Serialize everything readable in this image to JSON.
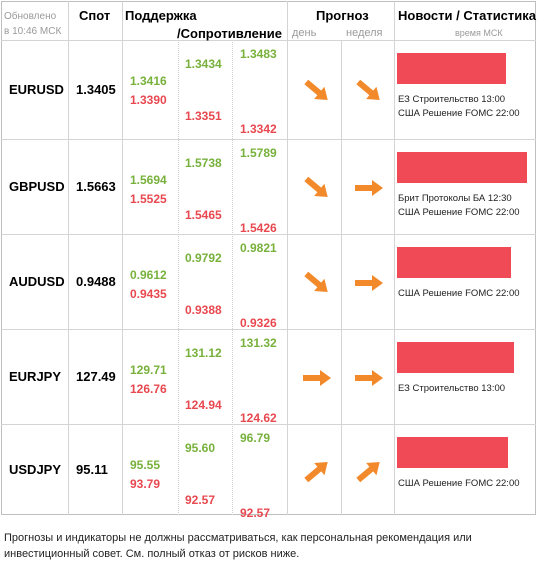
{
  "header": {
    "updated_line1": "Обновлено",
    "updated_line2": "в 10:46 МСК",
    "spot": "Спот",
    "support": "Поддержка",
    "resistance": "/Сопротивление",
    "forecast": "Прогноз",
    "day": "день",
    "week": "неделя",
    "news": "Новости / Статистика",
    "time_note": "время МСК"
  },
  "rows": [
    {
      "pair": "EURUSD",
      "spot": "1.3405",
      "c1": [
        "1.3416",
        "1.3390"
      ],
      "c2": [
        "1.3434",
        "1.3351"
      ],
      "c3": [
        "1.3483",
        "1.3342"
      ],
      "day": "down-right",
      "week": "down-right",
      "bar_pct": 0.81,
      "news": [
        "ЕЗ Строительство 13:00",
        "США Решение FOMC 22:00"
      ]
    },
    {
      "pair": "GBPUSD",
      "spot": "1.5663",
      "c1": [
        "1.5694",
        "1.5525"
      ],
      "c2": [
        "1.5738",
        "1.5465"
      ],
      "c3": [
        "1.5789",
        "1.5426"
      ],
      "day": "down-right",
      "week": "right",
      "bar_pct": 0.97,
      "news": [
        "Брит Протоколы БА 12:30",
        "США Решение FOMC 22:00"
      ]
    },
    {
      "pair": "AUDUSD",
      "spot": "0.9488",
      "c1": [
        "0.9612",
        "0.9435"
      ],
      "c2": [
        "0.9792",
        "0.9388"
      ],
      "c3": [
        "0.9821",
        "0.9326"
      ],
      "day": "down-right",
      "week": "right",
      "bar_pct": 0.85,
      "news": [
        "США Решение FOMC 22:00"
      ]
    },
    {
      "pair": "EURJPY",
      "spot": "127.49",
      "c1": [
        "129.71",
        "126.76"
      ],
      "c2": [
        "131.12",
        "124.94"
      ],
      "c3": [
        "131.32",
        "124.62"
      ],
      "day": "right",
      "week": "right",
      "bar_pct": 0.87,
      "news": [
        "ЕЗ Строительство 13:00"
      ]
    },
    {
      "pair": "USDJPY",
      "spot": "95.11",
      "c1": [
        "95.55",
        "93.79"
      ],
      "c2": [
        "95.60",
        "92.57"
      ],
      "c3": [
        "96.79",
        "92.57"
      ],
      "day": "up-right",
      "week": "up-right",
      "bar_pct": 0.83,
      "news": [
        "США Решение FOMC 22:00"
      ]
    }
  ],
  "disclaimer": "Прогнозы и индикаторы не должны рассматриваться, как персональная рекомендация или инвестиционный совет. См. полный отказ от рисков ниже.",
  "colors": {
    "support": "#77b13b",
    "resistance": "#e8484f",
    "arrow": "#f28a2c",
    "bar": "#ef4a56"
  }
}
